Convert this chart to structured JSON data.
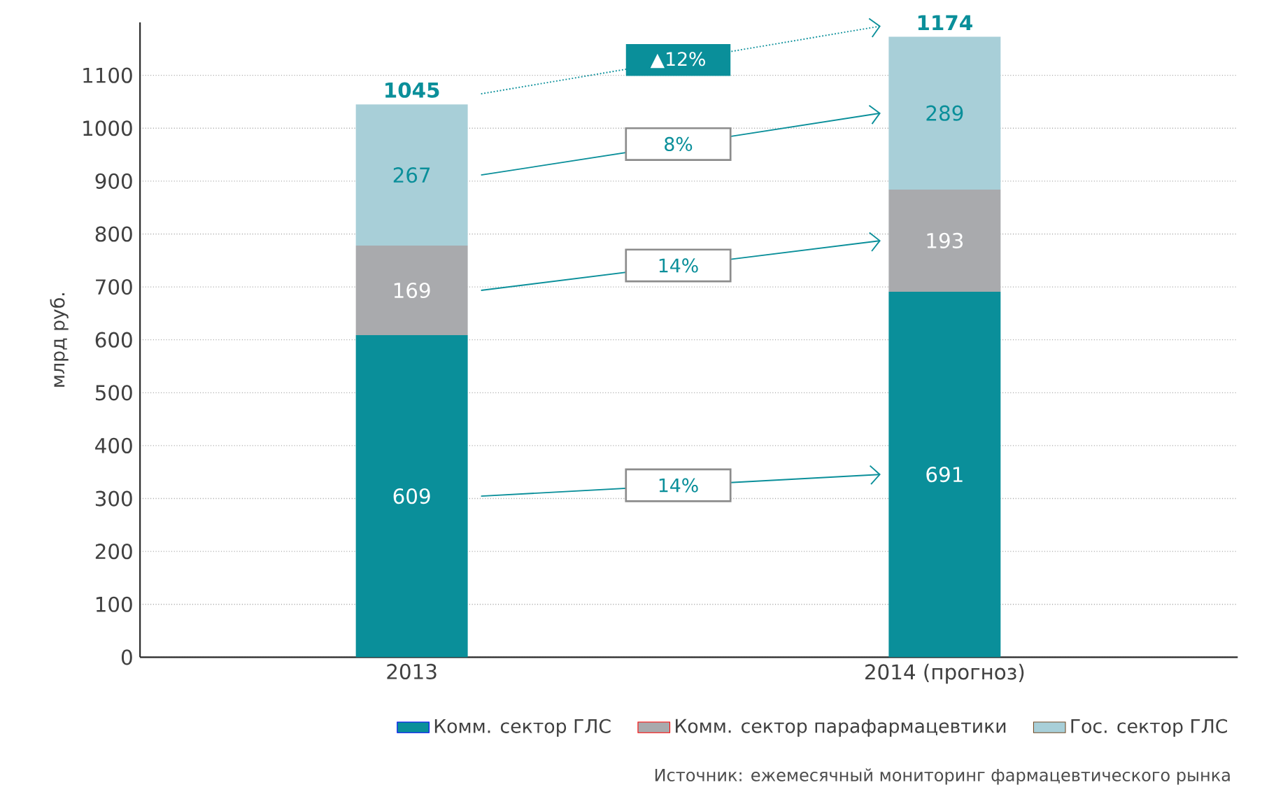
{
  "chart_data": {
    "type": "bar",
    "stacked": true,
    "ylabel": "млрд руб.",
    "categories": [
      "2013",
      "2014 (прогноз)"
    ],
    "series": [
      {
        "name": "Комм. сектор ГЛС",
        "color": "#0a8f9a",
        "values": [
          609,
          691
        ]
      },
      {
        "name": "Комм. сектор парафармацевтики",
        "color": "#a9aaad",
        "values": [
          169,
          193
        ]
      },
      {
        "name": "Гос. сектор ГЛС",
        "color": "#a8cfd8",
        "values": [
          267,
          289
        ]
      }
    ],
    "totals": [
      "1045",
      "1174"
    ],
    "data_labels": true,
    "ylim": [
      0,
      1200
    ],
    "yticks": [
      0,
      100,
      200,
      300,
      400,
      500,
      600,
      700,
      800,
      900,
      1000,
      1100
    ],
    "grid": "y",
    "legend": "bottom",
    "annotations": [
      "▲12%",
      "8%",
      "14%",
      "14%",
      "Источник: ежемесячный мониторинг фармацевтического рынка"
    ]
  }
}
